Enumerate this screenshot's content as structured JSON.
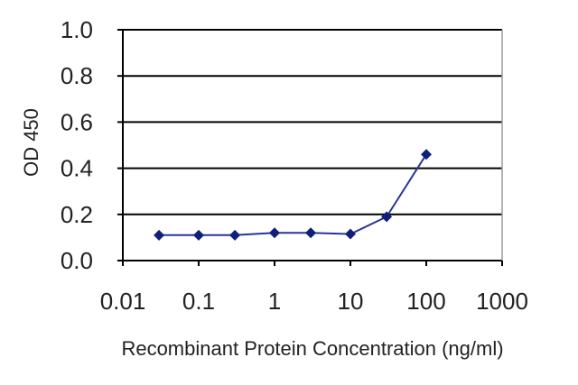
{
  "chart_data": {
    "type": "line",
    "xlabel": "Recombinant Protein Concentration (ng/ml)",
    "ylabel": "OD 450",
    "xscale": "log",
    "xlim": [
      0.01,
      1000
    ],
    "ylim": [
      0,
      1.0
    ],
    "x_ticks": [
      0.01,
      0.1,
      1,
      10,
      100,
      1000
    ],
    "x_tick_labels": [
      "0.01",
      "0.1",
      "1",
      "10",
      "100",
      "1000"
    ],
    "y_ticks": [
      0,
      0.2,
      0.4,
      0.6,
      0.8,
      1.0
    ],
    "y_tick_labels": [
      "0.0",
      "0.2",
      "0.4",
      "0.6",
      "0.8",
      "1.0"
    ],
    "grid": "horizontal",
    "legend": "none",
    "series": [
      {
        "x": [
          0.03,
          0.1,
          0.3,
          1,
          3,
          10,
          30,
          100
        ],
        "y": [
          0.11,
          0.11,
          0.11,
          0.12,
          0.12,
          0.115,
          0.19,
          0.46
        ],
        "marker": "diamond"
      }
    ]
  },
  "colors": {
    "series": "#2a3595",
    "marker": "#0f1f7a",
    "axis": "#000000",
    "grid": "#000000"
  }
}
